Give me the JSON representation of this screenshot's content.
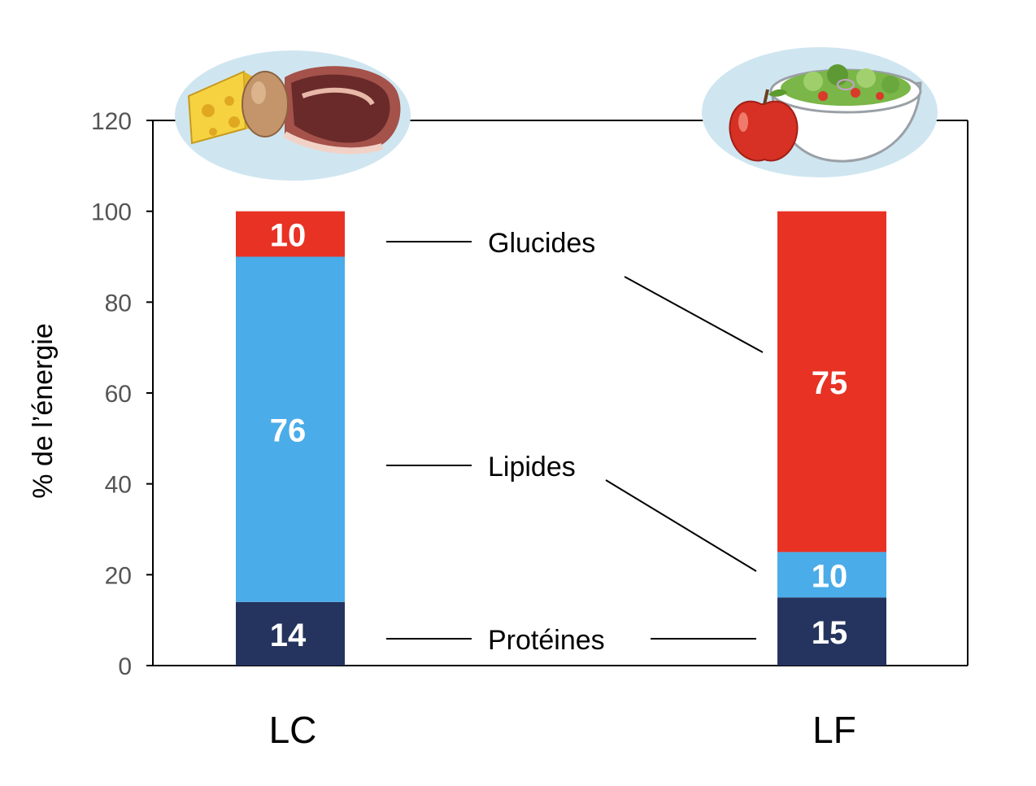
{
  "chart_data": {
    "type": "bar",
    "stacked": true,
    "categories": [
      "LC",
      "LF"
    ],
    "series": [
      {
        "name": "Protéines",
        "values": [
          14,
          15
        ],
        "color": "#25345e"
      },
      {
        "name": "Lipides",
        "values": [
          76,
          10
        ],
        "color": "#4aace8"
      },
      {
        "name": "Glucides",
        "values": [
          10,
          75
        ],
        "color": "#e83224"
      }
    ],
    "ylabel": "% de l’énergie",
    "ylim": [
      0,
      120
    ],
    "yticks": [
      "0",
      "20",
      "40",
      "60",
      "80",
      "100",
      "120"
    ],
    "grid": false,
    "legend": "inline, between bars with leader lines",
    "icons": {
      "LC": "cheese-egg-meat-icon",
      "LF": "apple-salad-bowl-icon"
    },
    "colors": {
      "axis": "#000000",
      "tick_text": "#555555",
      "icon_background": "#cfe6f1"
    }
  }
}
